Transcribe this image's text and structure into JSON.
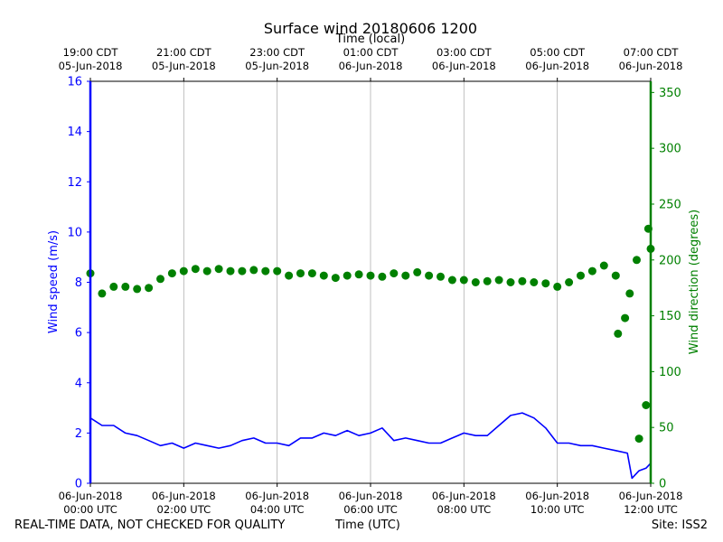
{
  "chart_data": {
    "type": "line",
    "title": "Surface wind 20180606 1200",
    "xlabel_bottom": "Time (UTC)",
    "xlabel_top": "Time (local)",
    "ylabel_left": "Wind speed (m/s)",
    "ylabel_right": "Wind direction (degrees)",
    "xlim_hours_utc": [
      0,
      12
    ],
    "ylim_left": [
      0,
      16
    ],
    "ylim_right": [
      0,
      360
    ],
    "yticks_left": [
      "0",
      "2",
      "4",
      "6",
      "8",
      "10",
      "12",
      "14",
      "16"
    ],
    "yticks_right": [
      "0",
      "50",
      "100",
      "150",
      "200",
      "250",
      "300",
      "350"
    ],
    "xticks_bottom": [
      {
        "h": 0,
        "l1": "06-Jun-2018",
        "l2": "00:00 UTC"
      },
      {
        "h": 2,
        "l1": "06-Jun-2018",
        "l2": "02:00 UTC"
      },
      {
        "h": 4,
        "l1": "06-Jun-2018",
        "l2": "04:00 UTC"
      },
      {
        "h": 6,
        "l1": "06-Jun-2018",
        "l2": "06:00 UTC"
      },
      {
        "h": 8,
        "l1": "06-Jun-2018",
        "l2": "08:00 UTC"
      },
      {
        "h": 10,
        "l1": "06-Jun-2018",
        "l2": "10:00 UTC"
      },
      {
        "h": 12,
        "l1": "06-Jun-2018",
        "l2": "12:00 UTC"
      }
    ],
    "xticks_top": [
      {
        "h": 0,
        "l1": "19:00 CDT",
        "l2": "05-Jun-2018"
      },
      {
        "h": 2,
        "l1": "21:00 CDT",
        "l2": "05-Jun-2018"
      },
      {
        "h": 4,
        "l1": "23:00 CDT",
        "l2": "05-Jun-2018"
      },
      {
        "h": 6,
        "l1": "01:00 CDT",
        "l2": "06-Jun-2018"
      },
      {
        "h": 8,
        "l1": "03:00 CDT",
        "l2": "06-Jun-2018"
      },
      {
        "h": 10,
        "l1": "05:00 CDT",
        "l2": "06-Jun-2018"
      },
      {
        "h": 12,
        "l1": "07:00 CDT",
        "l2": "06-Jun-2018"
      }
    ],
    "grid_vertical": true,
    "series": [
      {
        "name": "Wind speed",
        "axis": "left",
        "style": "line",
        "color": "#0000ff",
        "x_hours": [
          0,
          0.25,
          0.5,
          0.75,
          1.0,
          1.25,
          1.5,
          1.75,
          2.0,
          2.25,
          2.5,
          2.75,
          3.0,
          3.25,
          3.5,
          3.75,
          4.0,
          4.25,
          4.5,
          4.75,
          5.0,
          5.25,
          5.5,
          5.75,
          6.0,
          6.25,
          6.5,
          6.75,
          7.0,
          7.25,
          7.5,
          7.75,
          8.0,
          8.25,
          8.5,
          8.75,
          9.0,
          9.25,
          9.5,
          9.75,
          10.0,
          10.25,
          10.5,
          10.75,
          11.0,
          11.25,
          11.5,
          11.6,
          11.75,
          11.9,
          12.0
        ],
        "values": [
          2.6,
          2.3,
          2.3,
          2.0,
          1.9,
          1.7,
          1.5,
          1.6,
          1.4,
          1.6,
          1.5,
          1.4,
          1.5,
          1.7,
          1.8,
          1.6,
          1.6,
          1.5,
          1.8,
          1.8,
          2.0,
          1.9,
          2.1,
          1.9,
          2.0,
          2.2,
          1.7,
          1.8,
          1.7,
          1.6,
          1.6,
          1.8,
          2.0,
          1.9,
          1.9,
          2.3,
          2.7,
          2.8,
          2.6,
          2.2,
          1.6,
          1.6,
          1.5,
          1.5,
          1.4,
          1.3,
          1.2,
          0.2,
          0.5,
          0.6,
          0.8
        ]
      },
      {
        "name": "Wind direction",
        "axis": "right",
        "style": "scatter",
        "color": "#008000",
        "x_hours": [
          0,
          0.25,
          0.5,
          0.75,
          1.0,
          1.25,
          1.5,
          1.75,
          2.0,
          2.25,
          2.5,
          2.75,
          3.0,
          3.25,
          3.5,
          3.75,
          4.0,
          4.25,
          4.5,
          4.75,
          5.0,
          5.25,
          5.5,
          5.75,
          6.0,
          6.25,
          6.5,
          6.75,
          7.0,
          7.25,
          7.5,
          7.75,
          8.0,
          8.25,
          8.5,
          8.75,
          9.0,
          9.25,
          9.5,
          9.75,
          10.0,
          10.25,
          10.5,
          10.75,
          11.0,
          11.25,
          11.3,
          11.45,
          11.55,
          11.7,
          11.75,
          11.9,
          11.95,
          12.0
        ],
        "values": [
          188,
          170,
          176,
          176,
          174,
          175,
          183,
          188,
          190,
          192,
          190,
          192,
          190,
          190,
          191,
          190,
          190,
          186,
          188,
          188,
          186,
          184,
          186,
          187,
          186,
          185,
          188,
          186,
          189,
          186,
          185,
          182,
          182,
          180,
          181,
          182,
          180,
          181,
          180,
          179,
          176,
          180,
          186,
          190,
          195,
          186,
          134,
          148,
          170,
          200,
          40,
          70,
          228,
          210
        ]
      }
    ]
  },
  "footer": {
    "left": "REAL-TIME DATA, NOT CHECKED FOR QUALITY",
    "center": "Time (UTC)",
    "right": "Site: ISS2"
  }
}
